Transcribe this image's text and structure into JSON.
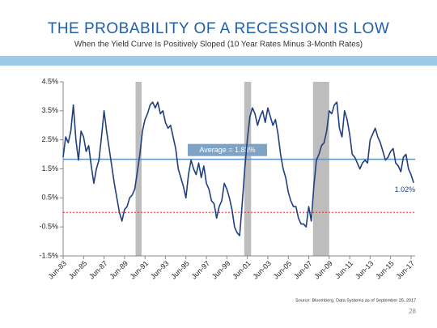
{
  "chart_data": {
    "type": "line",
    "title": "THE PROBABILITY OF A RECESSION IS LOW",
    "subtitle": "When the Yield Curve Is Positively Sloped (10 Year Rates Minus 3-Month Rates)",
    "source": "Source: Bloomberg, Data Systems as of September 25, 2017",
    "page_number": "28",
    "x": [
      1983.5,
      1983.75,
      1984,
      1984.25,
      1984.5,
      1984.75,
      1985,
      1985.25,
      1985.5,
      1985.75,
      1986,
      1986.25,
      1986.5,
      1986.75,
      1987,
      1987.25,
      1987.5,
      1987.75,
      1988,
      1988.25,
      1988.5,
      1988.75,
      1989,
      1989.25,
      1989.5,
      1989.75,
      1990,
      1990.25,
      1990.5,
      1990.75,
      1991,
      1991.25,
      1991.5,
      1991.75,
      1992,
      1992.25,
      1992.5,
      1992.75,
      1993,
      1993.25,
      1993.5,
      1993.75,
      1994,
      1994.25,
      1994.5,
      1994.75,
      1995,
      1995.25,
      1995.5,
      1995.75,
      1996,
      1996.25,
      1996.5,
      1996.75,
      1997,
      1997.25,
      1997.5,
      1997.75,
      1998,
      1998.25,
      1998.5,
      1998.75,
      1999,
      1999.25,
      1999.5,
      1999.75,
      2000,
      2000.25,
      2000.5,
      2000.75,
      2001,
      2001.25,
      2001.5,
      2001.75,
      2002,
      2002.25,
      2002.5,
      2002.75,
      2003,
      2003.25,
      2003.5,
      2003.75,
      2004,
      2004.25,
      2004.5,
      2004.75,
      2005,
      2005.25,
      2005.5,
      2005.75,
      2006,
      2006.25,
      2006.5,
      2006.75,
      2007,
      2007.25,
      2007.5,
      2007.75,
      2008,
      2008.25,
      2008.5,
      2008.75,
      2009,
      2009.25,
      2009.5,
      2009.75,
      2010,
      2010.25,
      2010.5,
      2010.75,
      2011,
      2011.25,
      2011.5,
      2011.75,
      2012,
      2012.25,
      2012.5,
      2012.75,
      2013,
      2013.25,
      2013.5,
      2013.75,
      2014,
      2014.25,
      2014.5,
      2014.75,
      2015,
      2015.25,
      2015.5,
      2015.75,
      2016,
      2016.25,
      2016.5,
      2016.75,
      2017,
      2017.25,
      2017.5,
      2017.75
    ],
    "series": [
      {
        "color": "#1f3f7f",
        "values": [
          1.9,
          2.6,
          2.4,
          2.8,
          3.7,
          2.5,
          1.8,
          2.8,
          2.6,
          2.1,
          2.3,
          1.6,
          1.0,
          1.5,
          1.8,
          2.6,
          3.5,
          2.8,
          2.2,
          1.6,
          1.0,
          0.5,
          0.0,
          -0.3,
          0.1,
          0.2,
          0.5,
          0.6,
          0.8,
          1.4,
          2.0,
          2.8,
          3.2,
          3.4,
          3.7,
          3.8,
          3.6,
          3.8,
          3.4,
          3.5,
          3.1,
          2.9,
          3.0,
          2.6,
          2.2,
          1.5,
          1.2,
          0.9,
          0.5,
          1.3,
          1.8,
          1.5,
          1.3,
          1.7,
          1.2,
          1.6,
          1.0,
          0.8,
          0.4,
          0.3,
          -0.2,
          0.2,
          0.4,
          1.0,
          0.8,
          0.5,
          0.1,
          -0.5,
          -0.7,
          -0.8,
          0.3,
          1.5,
          2.5,
          3.3,
          3.6,
          3.4,
          3.0,
          3.3,
          3.5,
          3.1,
          3.6,
          3.3,
          3.0,
          3.2,
          2.7,
          2.0,
          1.5,
          1.2,
          0.7,
          0.4,
          0.2,
          0.2,
          -0.2,
          -0.4,
          -0.4,
          -0.5,
          0.2,
          -0.3,
          0.9,
          1.8,
          2.0,
          2.3,
          2.4,
          2.8,
          3.5,
          3.4,
          3.7,
          3.8,
          2.9,
          2.6,
          3.5,
          3.2,
          2.7,
          2.0,
          1.9,
          1.7,
          1.5,
          1.7,
          1.8,
          1.7,
          2.5,
          2.7,
          2.9,
          2.6,
          2.4,
          2.1,
          1.8,
          1.9,
          2.1,
          2.2,
          1.7,
          1.6,
          1.4,
          1.9,
          2.0,
          1.5,
          1.3,
          1.02
        ]
      }
    ],
    "last_value_label": "1.02%",
    "average": {
      "value": 1.83,
      "label": "Average = 1.83%"
    },
    "zero_line": 0,
    "recessions": [
      [
        1990.58,
        1991.17
      ],
      [
        2001.2,
        2001.87
      ],
      [
        2007.92,
        2009.5
      ]
    ],
    "xlim": [
      1983.5,
      2017.9
    ],
    "xticks": [
      {
        "value": 1983.5,
        "label": "Jun-83"
      },
      {
        "value": 1985.5,
        "label": "Jun-85"
      },
      {
        "value": 1987.5,
        "label": "Jun-87"
      },
      {
        "value": 1989.5,
        "label": "Jun-89"
      },
      {
        "value": 1991.5,
        "label": "Jun-91"
      },
      {
        "value": 1993.5,
        "label": "Jun-93"
      },
      {
        "value": 1995.5,
        "label": "Jun-95"
      },
      {
        "value": 1997.5,
        "label": "Jun-97"
      },
      {
        "value": 1999.5,
        "label": "Jun-99"
      },
      {
        "value": 2001.5,
        "label": "Jun-01"
      },
      {
        "value": 2003.5,
        "label": "Jun-03"
      },
      {
        "value": 2005.5,
        "label": "Jun-05"
      },
      {
        "value": 2007.5,
        "label": "Jun-07"
      },
      {
        "value": 2009.5,
        "label": "Jun-09"
      },
      {
        "value": 2011.5,
        "label": "Jun-11"
      },
      {
        "value": 2013.5,
        "label": "Jun-13"
      },
      {
        "value": 2015.5,
        "label": "Jun-15"
      },
      {
        "value": 2017.5,
        "label": "Jun-17"
      }
    ],
    "ylim": [
      -1.5,
      4.5
    ],
    "yticks": [
      {
        "value": -1.5,
        "label": "-1.5%"
      },
      {
        "value": -0.5,
        "label": "-0.5%"
      },
      {
        "value": 0.5,
        "label": "0.5%"
      },
      {
        "value": 1.5,
        "label": "1.5%"
      },
      {
        "value": 2.5,
        "label": "2.5%"
      },
      {
        "value": 3.5,
        "label": "3.5%"
      },
      {
        "value": 4.5,
        "label": "4.5%"
      }
    ]
  }
}
